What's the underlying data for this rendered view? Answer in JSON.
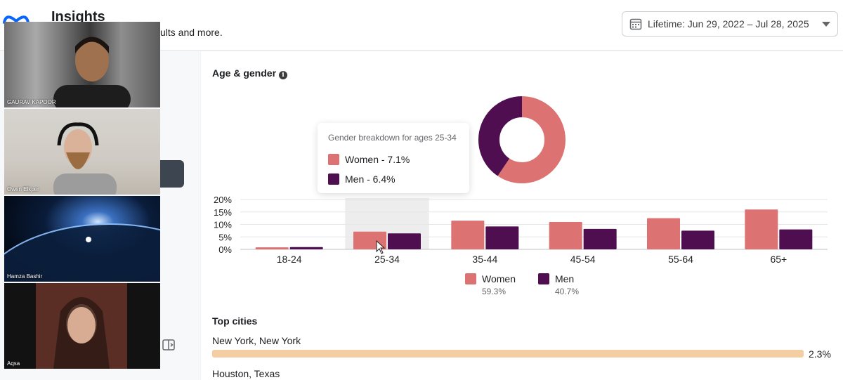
{
  "header": {
    "title": "Insights",
    "subtitle": "ults and more.",
    "date_range": "Lifetime: Jun 29, 2022 – Jul 28, 2025"
  },
  "age_gender": {
    "title": "Age & gender",
    "tooltip": {
      "title": "Gender breakdown for ages 25-34",
      "women": "Women - 7.1%",
      "men": "Men - 6.4%"
    },
    "legend": [
      {
        "label": "Women",
        "pct": "59.3%"
      },
      {
        "label": "Men",
        "pct": "40.7%"
      }
    ]
  },
  "chart_data": {
    "type": "bar",
    "categories": [
      "18-24",
      "25-34",
      "35-44",
      "45-54",
      "55-64",
      "65+"
    ],
    "series": [
      {
        "name": "Women",
        "color": "#dc7272",
        "values": [
          0.8,
          7.1,
          11.5,
          11.0,
          12.5,
          16.0
        ]
      },
      {
        "name": "Men",
        "color": "#4f0e4f",
        "values": [
          0.9,
          6.4,
          9.2,
          8.2,
          7.5,
          8.0
        ]
      }
    ],
    "yticks": [
      "20%",
      "15%",
      "10%",
      "5%",
      "0%"
    ],
    "ylim": [
      0,
      20
    ],
    "highlighted_category": "25-34",
    "donut": {
      "Women": 59.3,
      "Men": 40.7
    }
  },
  "top_cities": {
    "title": "Top cities",
    "items": [
      {
        "name": "New York, New York",
        "value": "2.3%",
        "fraction": 1.0
      },
      {
        "name": "Houston, Texas",
        "value": "",
        "fraction": 0
      }
    ]
  },
  "participants": [
    {
      "name": "GAURAV KAPOOR"
    },
    {
      "name": "Owen Elkjær"
    },
    {
      "name": "Hamza Bashir"
    },
    {
      "name": "Aqsa"
    }
  ],
  "colors": {
    "women": "#dc7272",
    "men": "#4f0e4f",
    "city_bar": "#f5cda3",
    "highlight": "#ededed"
  },
  "icons": [
    "meta-logo",
    "calendar-icon",
    "caret-down-icon",
    "info-icon",
    "cursor-icon",
    "panel-toggle-icon"
  ]
}
